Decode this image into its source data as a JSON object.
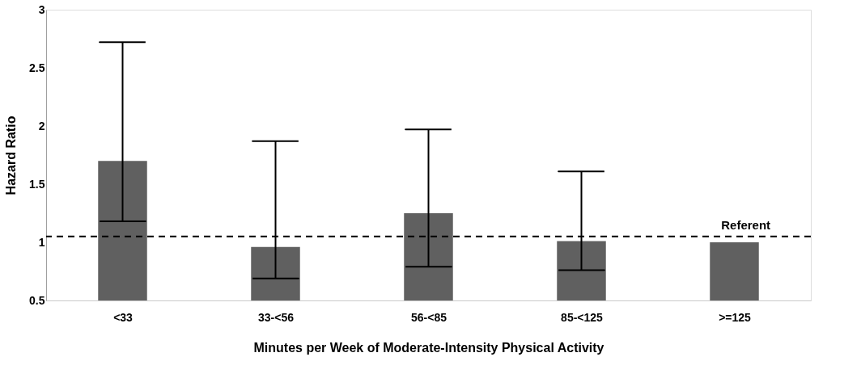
{
  "chart_data": {
    "type": "bar",
    "xlabel": "Minutes per Week of Moderate-Intensity Physical Activity",
    "ylabel": "Hazard Ratio",
    "categories": [
      "<33",
      "33-<56",
      "56-<85",
      "85-<125",
      ">=125"
    ],
    "values": [
      1.7,
      0.96,
      1.25,
      1.01,
      1.0
    ],
    "color": "#606060",
    "errors": [
      [
        1.18,
        2.72
      ],
      [
        0.69,
        1.87
      ],
      [
        0.79,
        1.97
      ],
      [
        0.76,
        1.61
      ],
      null
    ],
    "ylim": [
      0.5,
      3
    ],
    "yticks": [
      0.5,
      1,
      1.5,
      2,
      2.5,
      3
    ],
    "grid": false,
    "ref_lines": [
      {
        "axis": "y",
        "value": 1.05,
        "label": "Referent",
        "line_style": "dashed",
        "color": "#000000"
      }
    ]
  }
}
